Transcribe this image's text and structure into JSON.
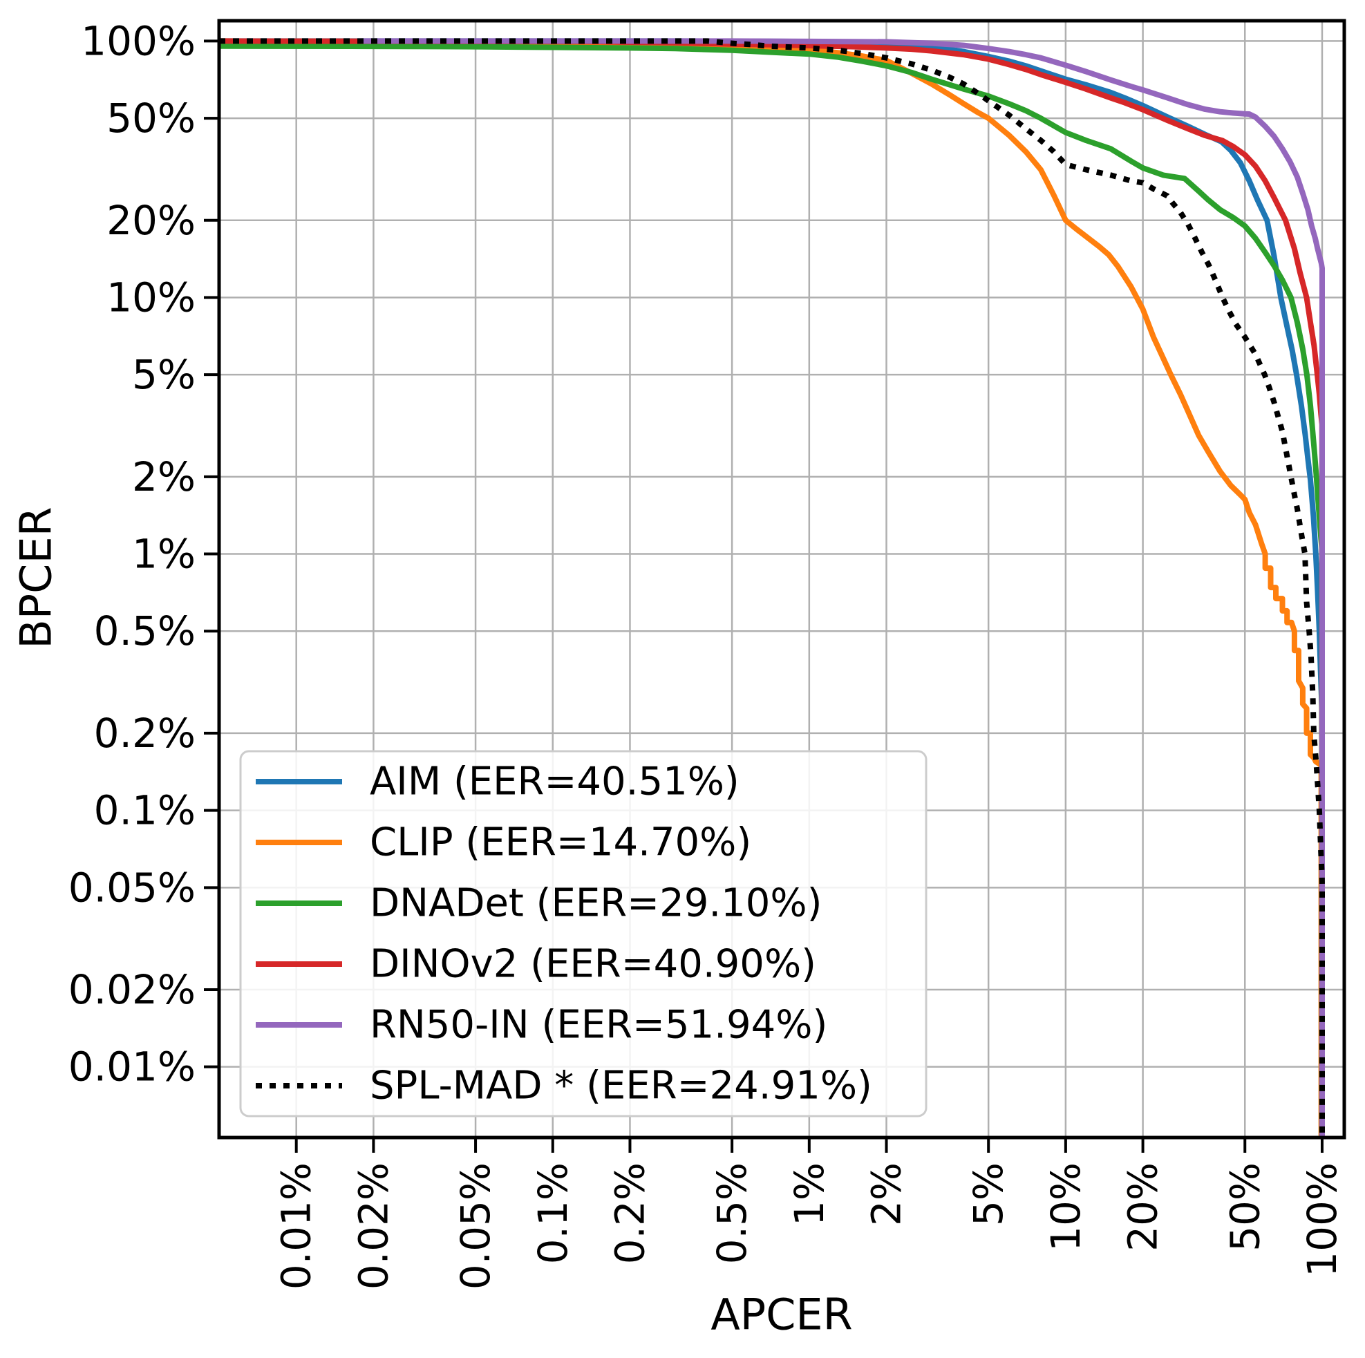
{
  "figure": {
    "background": "#ffffff",
    "grid_color": "#b0b0b0",
    "spine_color": "#000000",
    "legend_border_color": "#cccccc",
    "legend_background": "rgba(255,255,255,0.85)"
  },
  "chart_data": {
    "type": "line",
    "title": "",
    "xlabel": "APCER",
    "ylabel": "BPCER",
    "x_scale": "log",
    "y_scale": "log",
    "grid": true,
    "legend_position": "lower left",
    "xlim_pct": [
      0.005,
      122
    ],
    "ylim_pct": [
      0.0053,
      120
    ],
    "x_ticks": [
      0.01,
      0.02,
      0.05,
      0.1,
      0.2,
      0.5,
      1,
      2,
      5,
      10,
      20,
      50,
      100
    ],
    "x_tick_labels": [
      "0.01%",
      "0.02%",
      "0.05%",
      "0.1%",
      "0.2%",
      "0.5%",
      "1%",
      "2%",
      "5%",
      "10%",
      "20%",
      "50%",
      "100%"
    ],
    "y_ticks": [
      100,
      50,
      20,
      10,
      5,
      2,
      1,
      0.5,
      0.2,
      0.1,
      0.05,
      0.02,
      0.01
    ],
    "y_tick_labels": [
      "100%",
      "50%",
      "20%",
      "10%",
      "5%",
      "2%",
      "1%",
      "0.5%",
      "0.2%",
      "0.1%",
      "0.05%",
      "0.02%",
      "0.01%"
    ],
    "series": [
      {
        "name": "AIM",
        "legend_label": "AIM (EER=40.51%)",
        "eer_pct": 40.51,
        "color": "#1f77b4",
        "style": "solid",
        "points": [
          [
            0.005,
            100
          ],
          [
            0.3,
            100
          ],
          [
            0.6,
            99.8
          ],
          [
            1,
            99.5
          ],
          [
            1.5,
            99
          ],
          [
            2,
            98
          ],
          [
            2.5,
            96.5
          ],
          [
            3,
            95
          ],
          [
            4,
            91
          ],
          [
            5,
            87
          ],
          [
            6,
            83.5
          ],
          [
            7,
            80
          ],
          [
            8,
            76.5
          ],
          [
            10,
            71
          ],
          [
            12,
            67.5
          ],
          [
            15,
            63
          ],
          [
            17,
            60
          ],
          [
            20,
            56
          ],
          [
            25,
            50.5
          ],
          [
            30,
            46.5
          ],
          [
            35,
            43.2
          ],
          [
            40.51,
            40.51
          ],
          [
            44,
            37.5
          ],
          [
            48,
            33.5
          ],
          [
            52,
            28.5
          ],
          [
            56,
            24
          ],
          [
            61,
            20
          ],
          [
            65,
            14.5
          ],
          [
            69,
            10
          ],
          [
            73,
            7.7
          ],
          [
            76.5,
            6.2
          ],
          [
            79.5,
            5
          ],
          [
            83,
            3.8
          ],
          [
            86,
            2.9
          ],
          [
            88,
            2.35
          ],
          [
            90,
            1.95
          ],
          [
            92.5,
            1.4
          ],
          [
            94.5,
            1
          ],
          [
            96,
            0.72
          ],
          [
            97.5,
            0.5
          ],
          [
            98.6,
            0.35
          ],
          [
            99.4,
            0.28
          ],
          [
            99.7,
            0.25
          ],
          [
            99.7,
            0.0053
          ]
        ]
      },
      {
        "name": "CLIP",
        "legend_label": "CLIP (EER=14.70%)",
        "eer_pct": 14.7,
        "color": "#ff7f0e",
        "style": "solid",
        "points": [
          [
            0.005,
            100
          ],
          [
            0.03,
            99.5
          ],
          [
            0.05,
            99
          ],
          [
            0.1,
            98
          ],
          [
            0.2,
            97.2
          ],
          [
            0.3,
            96.8
          ],
          [
            0.5,
            96
          ],
          [
            0.7,
            94.5
          ],
          [
            1,
            92.5
          ],
          [
            1.3,
            90
          ],
          [
            1.6,
            87.5
          ],
          [
            2,
            84
          ],
          [
            2.2,
            80
          ],
          [
            2.5,
            75
          ],
          [
            3,
            68
          ],
          [
            3.5,
            62
          ],
          [
            4,
            57
          ],
          [
            4.5,
            53
          ],
          [
            5,
            50
          ],
          [
            6,
            43
          ],
          [
            7,
            37
          ],
          [
            8,
            31.5
          ],
          [
            9,
            25
          ],
          [
            10,
            20
          ],
          [
            11,
            18.5
          ],
          [
            12,
            17.3
          ],
          [
            13.5,
            15.8
          ],
          [
            14.7,
            14.7
          ],
          [
            16,
            13.2
          ],
          [
            18,
            11
          ],
          [
            20,
            9
          ],
          [
            22,
            7
          ],
          [
            24,
            5.8
          ],
          [
            25.7,
            5
          ],
          [
            28,
            4.2
          ],
          [
            30,
            3.6
          ],
          [
            33,
            2.9
          ],
          [
            36,
            2.5
          ],
          [
            40,
            2.1
          ],
          [
            44,
            1.85
          ],
          [
            48,
            1.7
          ],
          [
            50,
            1.63
          ],
          [
            52,
            1.45
          ],
          [
            55,
            1.3
          ],
          [
            58,
            1.1
          ],
          [
            60,
            1
          ],
          [
            60,
            0.88
          ],
          [
            63,
            0.88
          ],
          [
            63,
            0.74
          ],
          [
            66,
            0.74
          ],
          [
            66,
            0.67
          ],
          [
            70,
            0.67
          ],
          [
            70,
            0.6
          ],
          [
            73,
            0.6
          ],
          [
            73,
            0.54
          ],
          [
            76,
            0.54
          ],
          [
            78,
            0.5
          ],
          [
            78,
            0.42
          ],
          [
            81,
            0.42
          ],
          [
            81,
            0.32
          ],
          [
            84,
            0.3
          ],
          [
            84,
            0.26
          ],
          [
            87,
            0.25
          ],
          [
            87,
            0.2
          ],
          [
            90,
            0.2
          ],
          [
            90,
            0.165
          ],
          [
            93,
            0.16
          ],
          [
            94.5,
            0.155
          ],
          [
            99.2,
            0.15
          ],
          [
            99.2,
            0.0053
          ]
        ]
      },
      {
        "name": "DNADet",
        "legend_label": "DNADet (EER=29.10%)",
        "eer_pct": 29.1,
        "color": "#2ca02c",
        "style": "solid",
        "points": [
          [
            0.005,
            95.5
          ],
          [
            0.02,
            95.3
          ],
          [
            0.05,
            95
          ],
          [
            0.1,
            94.5
          ],
          [
            0.2,
            94
          ],
          [
            0.3,
            93.5
          ],
          [
            0.5,
            92
          ],
          [
            0.7,
            90.5
          ],
          [
            1,
            89
          ],
          [
            1.3,
            86.5
          ],
          [
            1.6,
            83.5
          ],
          [
            2,
            80
          ],
          [
            2.5,
            75.5
          ],
          [
            3,
            71
          ],
          [
            4,
            65
          ],
          [
            5,
            61
          ],
          [
            6,
            57
          ],
          [
            7,
            53.5
          ],
          [
            8,
            50
          ],
          [
            10,
            44
          ],
          [
            12,
            41
          ],
          [
            15,
            38
          ],
          [
            18,
            34
          ],
          [
            20,
            32
          ],
          [
            24,
            30
          ],
          [
            29.1,
            29.1
          ],
          [
            33,
            26
          ],
          [
            36,
            24
          ],
          [
            40,
            22
          ],
          [
            45,
            20.5
          ],
          [
            50,
            19
          ],
          [
            55,
            17
          ],
          [
            60,
            15
          ],
          [
            65,
            13.3
          ],
          [
            70,
            11.7
          ],
          [
            75.6,
            10
          ],
          [
            80,
            8
          ],
          [
            84,
            6.3
          ],
          [
            87.2,
            5
          ],
          [
            90,
            3.8
          ],
          [
            93,
            2.6
          ],
          [
            95,
            2
          ],
          [
            97,
            1.5
          ],
          [
            99,
            1.15
          ],
          [
            99.8,
            1.05
          ],
          [
            99.8,
            0.0053
          ]
        ]
      },
      {
        "name": "DINOv2",
        "legend_label": "DINOv2 (EER=40.90%)",
        "eer_pct": 40.9,
        "color": "#d62728",
        "style": "solid",
        "points": [
          [
            0.005,
            100
          ],
          [
            0.15,
            99.5
          ],
          [
            0.2,
            99
          ],
          [
            0.3,
            98.5
          ],
          [
            0.5,
            97.3
          ],
          [
            0.8,
            96.5
          ],
          [
            1,
            96
          ],
          [
            1.5,
            95
          ],
          [
            2,
            94
          ],
          [
            2.5,
            93
          ],
          [
            3,
            91.5
          ],
          [
            4,
            88.5
          ],
          [
            5,
            85
          ],
          [
            6,
            81
          ],
          [
            7,
            77.5
          ],
          [
            8,
            74
          ],
          [
            10,
            69
          ],
          [
            12,
            65
          ],
          [
            15,
            60
          ],
          [
            17,
            57.5
          ],
          [
            20,
            54
          ],
          [
            25,
            49
          ],
          [
            30,
            45.5
          ],
          [
            35,
            42.8
          ],
          [
            40.9,
            40.9
          ],
          [
            45,
            38.8
          ],
          [
            50,
            36
          ],
          [
            55,
            32.5
          ],
          [
            60,
            28.5
          ],
          [
            65,
            24.5
          ],
          [
            72,
            20
          ],
          [
            78,
            15.5
          ],
          [
            82,
            12.5
          ],
          [
            87,
            10
          ],
          [
            90,
            8
          ],
          [
            93,
            6.5
          ],
          [
            95.8,
            5
          ],
          [
            97.5,
            4.2
          ],
          [
            99,
            3.5
          ],
          [
            99.9,
            3.2
          ],
          [
            99.9,
            0.0053
          ]
        ]
      },
      {
        "name": "RN50-IN",
        "legend_label": "RN50-IN (EER=51.94%)",
        "eer_pct": 51.94,
        "color": "#9467bd",
        "style": "solid",
        "points": [
          [
            0.018,
            100
          ],
          [
            0.5,
            100
          ],
          [
            1,
            99.7
          ],
          [
            2,
            99.3
          ],
          [
            3,
            98
          ],
          [
            4,
            96.2
          ],
          [
            5,
            93.5
          ],
          [
            6,
            91
          ],
          [
            7,
            88.5
          ],
          [
            8,
            86
          ],
          [
            10,
            80.5
          ],
          [
            12,
            76
          ],
          [
            15,
            70.5
          ],
          [
            18,
            66.5
          ],
          [
            20,
            64.5
          ],
          [
            25,
            60
          ],
          [
            30,
            56.5
          ],
          [
            35,
            54.2
          ],
          [
            40,
            53
          ],
          [
            45,
            52.4
          ],
          [
            50,
            52
          ],
          [
            51.94,
            51.94
          ],
          [
            55,
            50.5
          ],
          [
            60,
            46.5
          ],
          [
            65,
            42.5
          ],
          [
            70,
            38
          ],
          [
            75,
            33.8
          ],
          [
            80,
            29.5
          ],
          [
            84,
            25.5
          ],
          [
            88,
            22
          ],
          [
            91,
            19
          ],
          [
            94,
            17
          ],
          [
            96,
            15.5
          ],
          [
            98,
            14.3
          ],
          [
            99.3,
            13.6
          ],
          [
            100,
            13
          ],
          [
            100,
            0.0053
          ]
        ]
      },
      {
        "name": "SPL-MAD",
        "legend_label": "SPL-MAD * (EER=24.91%)",
        "eer_pct": 24.91,
        "color": "#000000",
        "style": "dotted",
        "points": [
          [
            0.005,
            100
          ],
          [
            0.4,
            100
          ],
          [
            0.5,
            98
          ],
          [
            0.6,
            96.8
          ],
          [
            0.7,
            95.5
          ],
          [
            1,
            94
          ],
          [
            1.3,
            92
          ],
          [
            1.6,
            89.5
          ],
          [
            2,
            86
          ],
          [
            2.5,
            81.5
          ],
          [
            3,
            77
          ],
          [
            3.5,
            72.5
          ],
          [
            4,
            68
          ],
          [
            4.5,
            63
          ],
          [
            5,
            58.5
          ],
          [
            6,
            51.5
          ],
          [
            7,
            45.5
          ],
          [
            8,
            41
          ],
          [
            9,
            37
          ],
          [
            10,
            33
          ],
          [
            12,
            31.5
          ],
          [
            15,
            30
          ],
          [
            18,
            28.5
          ],
          [
            20,
            28
          ],
          [
            22,
            26.5
          ],
          [
            24.91,
            24.91
          ],
          [
            26,
            23.5
          ],
          [
            28,
            21.5
          ],
          [
            30,
            19.3
          ],
          [
            32,
            17
          ],
          [
            34,
            15
          ],
          [
            36,
            13.5
          ],
          [
            38.5,
            11.6
          ],
          [
            40.9,
            10
          ],
          [
            43.5,
            8.8
          ],
          [
            46,
            7.9
          ],
          [
            50,
            7
          ],
          [
            55,
            6
          ],
          [
            59.7,
            5
          ],
          [
            62,
            4.5
          ],
          [
            65,
            3.9
          ],
          [
            70,
            3
          ],
          [
            72.5,
            2.5
          ],
          [
            75.6,
            2
          ],
          [
            78,
            1.7
          ],
          [
            80,
            1.5
          ],
          [
            83,
            1.2
          ],
          [
            85.7,
            1
          ],
          [
            87,
            0.65
          ],
          [
            89,
            0.5
          ],
          [
            90.5,
            0.4
          ],
          [
            92,
            0.28
          ],
          [
            92.8,
            0.2
          ],
          [
            95,
            0.15
          ],
          [
            97.5,
            0.1
          ],
          [
            99,
            0.068
          ],
          [
            99.9,
            0.055
          ],
          [
            100,
            0.05
          ],
          [
            100,
            0.0053
          ]
        ]
      }
    ]
  }
}
